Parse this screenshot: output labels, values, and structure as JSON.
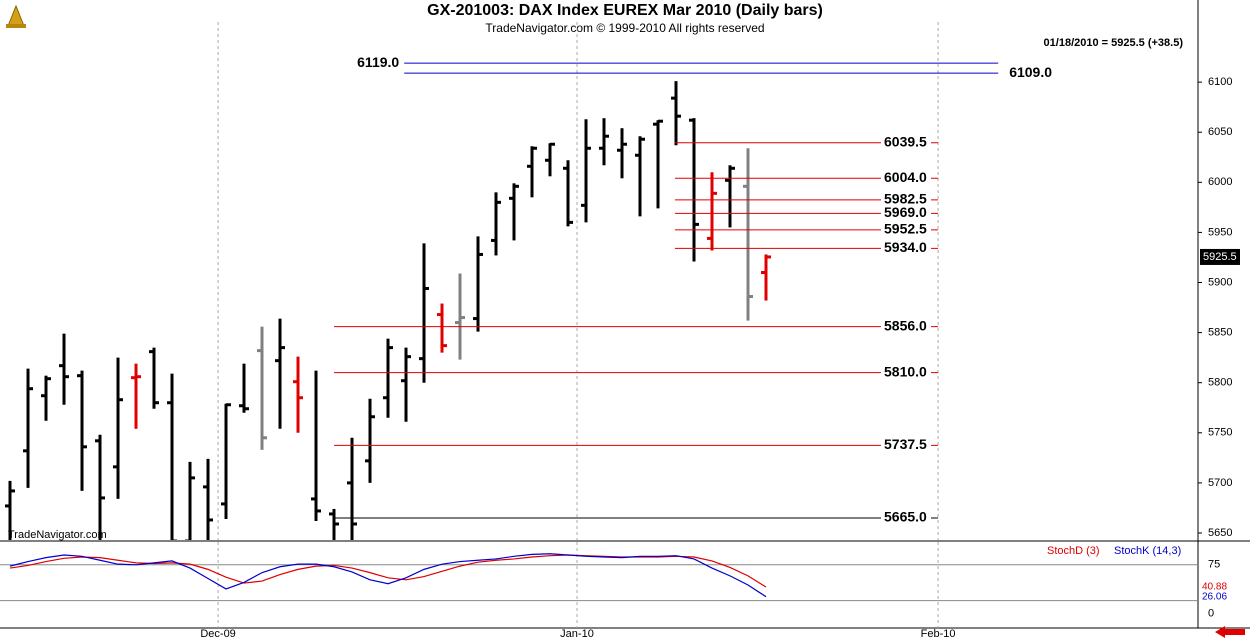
{
  "chart_data": [
    {
      "type": "ohlc",
      "title": "GX-201003:  DAX Index EUREX Mar 2010  (Daily bars)",
      "subtitle": "TradeNavigator.com © 1999-2010 All rights reserved",
      "info": "01/18/2010 = 5925.5 (+38.5)",
      "watermark": "TradeNavigator.com",
      "x": [
        0,
        1,
        2,
        3,
        4,
        5,
        6,
        7,
        8,
        9,
        10,
        11,
        12,
        13,
        14,
        15,
        16,
        17,
        18,
        19,
        20,
        21,
        22,
        23,
        24,
        25,
        26,
        27,
        28,
        29,
        30,
        31,
        32,
        33,
        34,
        35,
        36,
        37,
        38,
        39,
        40,
        41,
        42
      ],
      "open": [
        5677,
        5732,
        5787,
        5817,
        5807,
        5742,
        5716,
        5805,
        5831,
        5780,
        5642,
        5696,
        5679,
        5777,
        5832,
        5822,
        5801,
        5684,
        5669,
        5700,
        5722,
        5785,
        5802,
        5824,
        5868,
        5860,
        5864,
        5942,
        5984,
        6016,
        6022,
        6014,
        5977,
        6034,
        6032,
        6027,
        6058,
        6084,
        6062,
        5944,
        6002,
        5996,
        5910
      ],
      "high": [
        5702,
        5814,
        5807,
        5849,
        5812,
        5748,
        5825,
        5819,
        5835,
        5809,
        5721,
        5724,
        5779,
        5819,
        5856,
        5864,
        5826,
        5812,
        5674,
        5745,
        5784,
        5844,
        5835,
        5939,
        5879,
        5909,
        5946,
        5990,
        5999,
        6036,
        6039,
        6022,
        6063,
        6064,
        6054,
        6046,
        6062,
        6101,
        6064,
        6010,
        6017,
        6034,
        5928
      ],
      "low": [
        5642,
        5695,
        5762,
        5778,
        5692,
        5642,
        5684,
        5754,
        5774,
        5642,
        5642,
        5642,
        5664,
        5770,
        5733,
        5754,
        5750,
        5662,
        5642,
        5642,
        5700,
        5765,
        5761,
        5800,
        5830,
        5823,
        5851,
        5927,
        5942,
        5985,
        6006,
        5956,
        5960,
        6017,
        6004,
        5966,
        5974,
        6037,
        5921,
        5932,
        5955,
        5862,
        5882
      ],
      "close": [
        5692,
        5794,
        5804,
        5806,
        5736,
        5685,
        5783,
        5806,
        5780,
        5642,
        5705,
        5663,
        5778,
        5774,
        5745,
        5835,
        5785,
        5672,
        5659,
        5659,
        5766,
        5835,
        5826,
        5894,
        5837,
        5865,
        5928,
        5980,
        5996,
        6034,
        6038,
        5960,
        6034,
        6046,
        6038,
        6043,
        6061,
        6066,
        5958,
        5989,
        6014,
        5886,
        5925.5
      ],
      "colors": [
        "#000",
        "#000",
        "#000",
        "#000",
        "#000",
        "#000",
        "#000",
        "#e00000",
        "#000",
        "#000",
        "#000",
        "#000",
        "#000",
        "#000",
        "#808080",
        "#000",
        "#e00000",
        "#000",
        "#000",
        "#000",
        "#000",
        "#000",
        "#000",
        "#000",
        "#e00000",
        "#808080",
        "#000",
        "#000",
        "#000",
        "#000",
        "#000",
        "#000",
        "#000",
        "#000",
        "#000",
        "#000",
        "#000",
        "#000",
        "#000",
        "#e00000",
        "#000",
        "#808080",
        "#e00000"
      ],
      "xlim": [
        -0.556,
        66.0
      ],
      "ylim": [
        5643,
        6160
      ],
      "yticks": [
        5650,
        5700,
        5750,
        5800,
        5850,
        5900,
        5950,
        6000,
        6050,
        6100
      ],
      "xticks": [
        {
          "value": 11.56,
          "label": "Dec-09"
        },
        {
          "value": 31.5,
          "label": "Jan-10"
        },
        {
          "value": 51.56,
          "label": "Feb-10"
        }
      ],
      "levels": [
        {
          "value": 6119,
          "label": "6119.0",
          "color": "#0000cc",
          "x_start": 21.9,
          "x_end": 54.9,
          "label_side": "left"
        },
        {
          "value": 6109,
          "label": "6109.0",
          "color": "#0000cc",
          "x_start": 21.9,
          "x_end": 54.9,
          "label_side": "right"
        },
        {
          "value": 6039.5,
          "label": "6039.5",
          "color": "#dd0000",
          "x_start": 36.94,
          "x_end": 51.56,
          "label_side": "over"
        },
        {
          "value": 6004,
          "label": "6004.0",
          "color": "#dd0000",
          "x_start": 36.94,
          "x_end": 51.56,
          "label_side": "over"
        },
        {
          "value": 5982.5,
          "label": "5982.5",
          "color": "#dd0000",
          "x_start": 36.94,
          "x_end": 51.56,
          "label_side": "over"
        },
        {
          "value": 5969,
          "label": "5969.0",
          "color": "#dd0000",
          "x_start": 36.94,
          "x_end": 51.56,
          "label_side": "over"
        },
        {
          "value": 5952.5,
          "label": "5952.5",
          "color": "#dd0000",
          "x_start": 36.94,
          "x_end": 51.56,
          "label_side": "over"
        },
        {
          "value": 5934,
          "label": "5934.0",
          "color": "#dd0000",
          "x_start": 36.94,
          "x_end": 51.56,
          "label_side": "over"
        },
        {
          "value": 5856,
          "label": "5856.0",
          "color": "#dd0000",
          "x_start": 18,
          "x_end": 51.56,
          "label_side": "over"
        },
        {
          "value": 5810,
          "label": "5810.0",
          "color": "#dd0000",
          "x_start": 18,
          "x_end": 51.56,
          "label_side": "over"
        },
        {
          "value": 5737.5,
          "label": "5737.5",
          "color": "#dd0000",
          "x_start": 18,
          "x_end": 51.56,
          "label_side": "over"
        },
        {
          "value": 5665,
          "label": "5665.0",
          "color": "#000000",
          "x_start": 18,
          "x_end": 51.56,
          "label_side": "over"
        }
      ]
    },
    {
      "type": "line",
      "x": [
        0,
        1,
        2,
        3,
        4,
        5,
        6,
        7,
        8,
        9,
        10,
        11,
        12,
        13,
        14,
        15,
        16,
        17,
        18,
        19,
        20,
        21,
        22,
        23,
        24,
        25,
        26,
        27,
        28,
        29,
        30,
        31,
        32,
        33,
        34,
        35,
        36,
        37,
        38,
        39,
        40,
        41,
        42
      ],
      "series": [
        {
          "name": "StochD (3)",
          "color": "#dd0000",
          "values": [
            70,
            74,
            80,
            85,
            87,
            86,
            82,
            78,
            77,
            78,
            76,
            68,
            56,
            47,
            50,
            60,
            68,
            73,
            74,
            70,
            63,
            55,
            52,
            57,
            65,
            73,
            79,
            82,
            84,
            87,
            89,
            90,
            89,
            88,
            87,
            87,
            87,
            88,
            87,
            81,
            71,
            58,
            40.88
          ]
        },
        {
          "name": "StochK (14,3)",
          "color": "#0000cc",
          "values": [
            73,
            80,
            86,
            90,
            88,
            82,
            76,
            75,
            78,
            81,
            70,
            54,
            38,
            48,
            63,
            72,
            76,
            76,
            72,
            64,
            52,
            46,
            55,
            68,
            76,
            80,
            82,
            84,
            88,
            91,
            92,
            90,
            88,
            87,
            86,
            88,
            88,
            89,
            84,
            70,
            58,
            44,
            26.06
          ]
        }
      ],
      "ylim": [
        -22,
        110
      ],
      "yticks": [
        0,
        75
      ],
      "levels": [
        75,
        20
      ]
    }
  ]
}
